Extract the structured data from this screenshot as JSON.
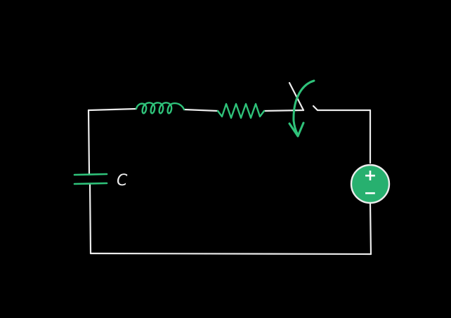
{
  "colors": {
    "background": "#000000",
    "wire": "#ececec",
    "component": "#2fc27a",
    "source_fill": "#27b06f",
    "source_symbol": "#ffffff"
  },
  "components": {
    "capacitor": {
      "name": "capacitor",
      "label": "C"
    },
    "inductor": {
      "name": "inductor"
    },
    "resistor": {
      "name": "resistor"
    },
    "switch": {
      "name": "switch",
      "state": "open",
      "arrow_icon": "curved-arrow-icon"
    },
    "source": {
      "name": "voltage-source",
      "plus": "+",
      "minus": "−"
    }
  }
}
